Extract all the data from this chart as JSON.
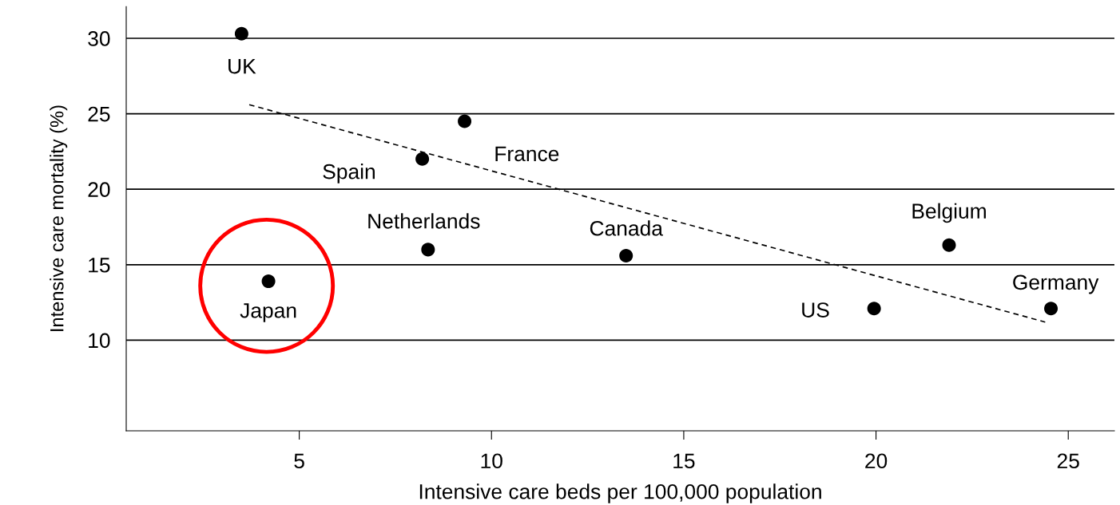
{
  "chart_data": {
    "type": "scatter",
    "xlabel": "Intensive care beds per 100,000 population",
    "ylabel": "Intensive care mortality (%)",
    "series": [
      {
        "color": "#000000",
        "marker": "circle",
        "x": [
          3.5,
          9.3,
          8.2,
          8.35,
          4.2,
          13.5,
          21.9,
          19.95,
          24.55
        ],
        "values": [
          30.3,
          24.5,
          22.0,
          16.0,
          13.9,
          15.6,
          16.3,
          12.1,
          12.1
        ]
      },
      {
        "type": "line",
        "color": "#000000",
        "line_style": "dashed",
        "marker": "none",
        "x": [
          3.7,
          24.4
        ],
        "values": [
          25.6,
          11.2
        ]
      }
    ],
    "annotations": [
      {
        "text": "UK",
        "x": 3.5,
        "y": 30.3
      },
      {
        "text": "France",
        "x": 9.3,
        "y": 24.5
      },
      {
        "text": "Spain",
        "x": 8.2,
        "y": 22.0
      },
      {
        "text": "Netherlands",
        "x": 8.35,
        "y": 16.0
      },
      {
        "text": "Japan",
        "x": 4.2,
        "y": 13.9
      },
      {
        "text": "Canada",
        "x": 13.5,
        "y": 15.6
      },
      {
        "text": "Belgium",
        "x": 21.9,
        "y": 16.3
      },
      {
        "text": "US",
        "x": 19.95,
        "y": 12.1
      },
      {
        "text": "Germany",
        "x": 24.55,
        "y": 12.1
      }
    ],
    "xlim": [
      0.5,
      26.2
    ],
    "xticks": [
      5,
      10,
      15,
      20,
      25
    ],
    "ylim": [
      4,
      32.1
    ],
    "yticks": [
      10,
      15,
      20,
      25,
      30
    ],
    "grid": "y",
    "legend": false
  }
}
